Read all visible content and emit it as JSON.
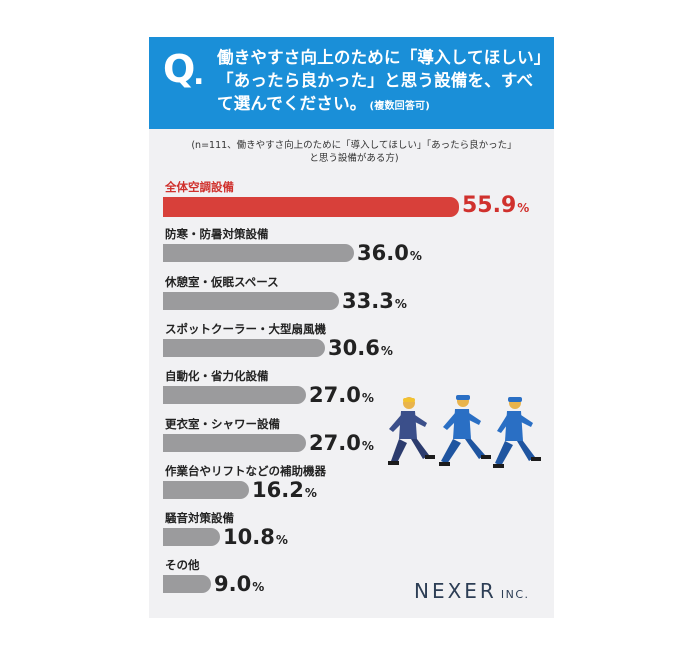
{
  "question": {
    "mark": "Q",
    "dot": ".",
    "text": "働きやすさ向上のために「導入してほしい」「あったら良かった」と思う設備を、すべて選んでください。",
    "note": "(複数回答可)"
  },
  "sample_note": {
    "line1": "(n=111、働きやすさ向上のために「導入してほしい」「あったら良かった」",
    "line2": "と思う設備がある方)"
  },
  "logo": {
    "name": "NEXER",
    "suffix": "INC."
  },
  "colors": {
    "header": "#1a8fd8",
    "highlight": "#d8403a",
    "bar": "#9b9b9d",
    "card": "#f1f1f3"
  },
  "illustration": "three-running-workers",
  "chart_data": {
    "type": "bar",
    "orientation": "horizontal",
    "unit": "%",
    "categories": [
      "全体空調設備",
      "防寒・防暑対策設備",
      "休憩室・仮眠スペース",
      "スポットクーラー・大型扇風機",
      "自動化・省力化設備",
      "更衣室・シャワー設備",
      "作業台やリフトなどの補助機器",
      "騒音対策設備",
      "その他"
    ],
    "values": [
      55.9,
      36.0,
      33.3,
      30.6,
      27.0,
      27.0,
      16.2,
      10.8,
      9.0
    ],
    "value_labels": [
      "55.9",
      "36.0",
      "33.3",
      "30.6",
      "27.0",
      "27.0",
      "16.2",
      "10.8",
      "9.0"
    ],
    "highlight_index": 0
  }
}
